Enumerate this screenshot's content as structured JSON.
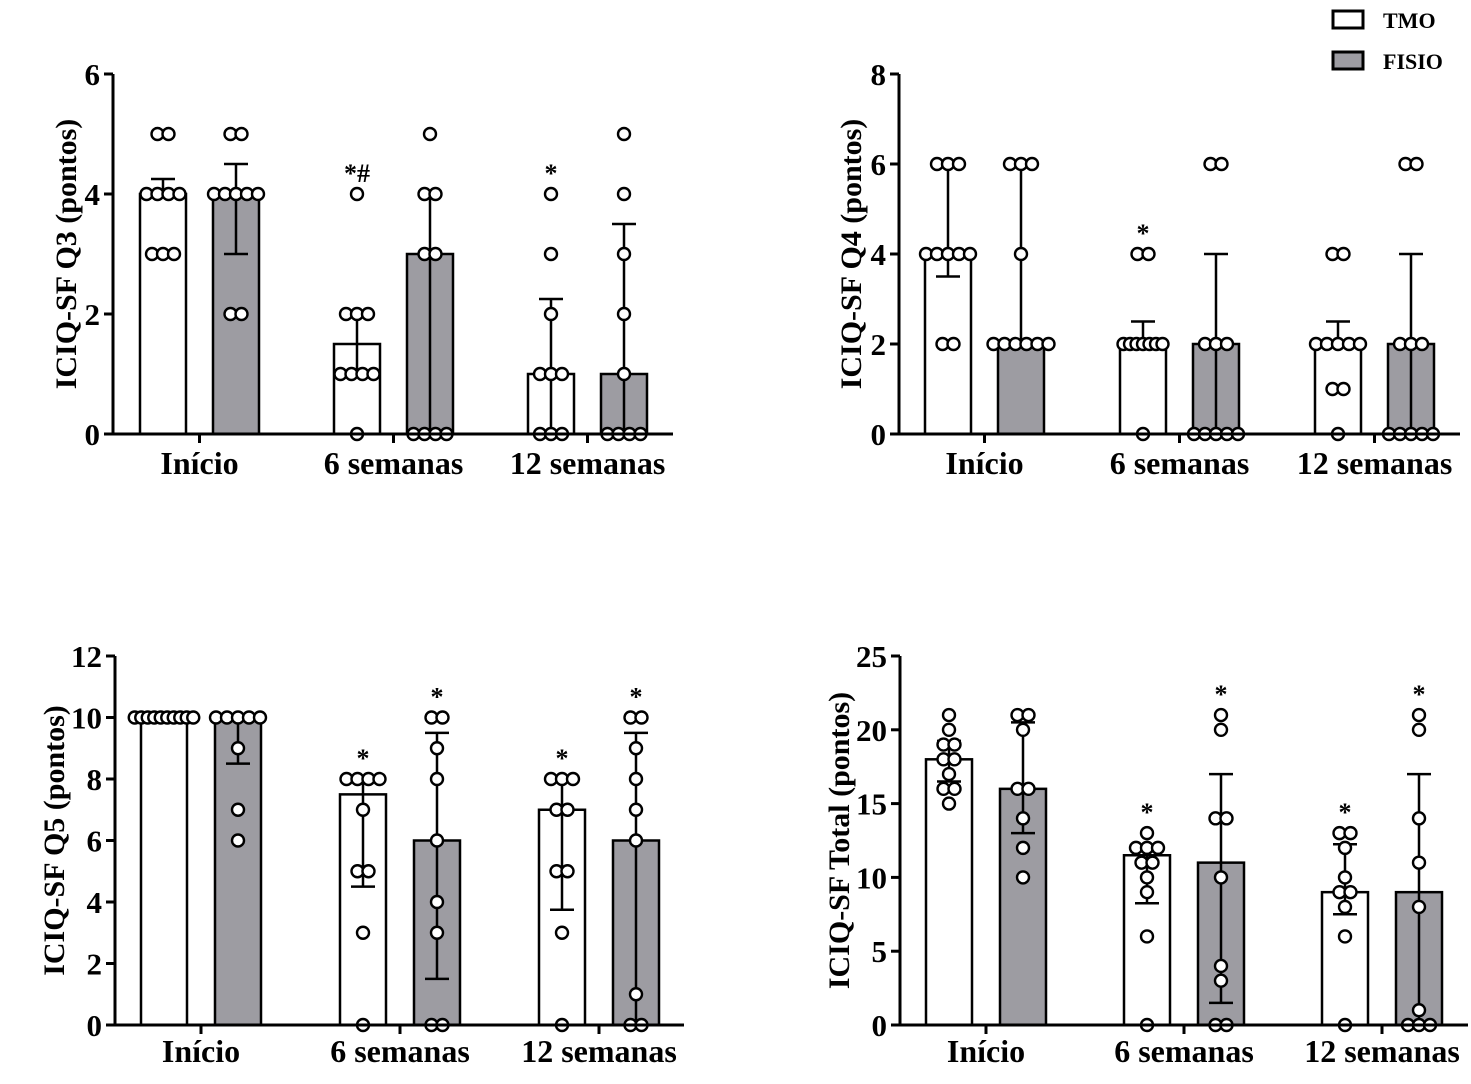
{
  "colors": {
    "tmo": "#ffffff",
    "fisio": "#9d9ca2",
    "stroke": "#000000"
  },
  "legend": {
    "items": [
      {
        "label": "TMO",
        "color": "#ffffff"
      },
      {
        "label": "FISIO",
        "color": "#9d9ca2"
      }
    ]
  },
  "chart_data": [
    {
      "type": "bar",
      "ylabel": "ICIQ-SF Q3 (pontos)",
      "ylim": [
        0,
        6
      ],
      "yticks": [
        0,
        2,
        4,
        6
      ],
      "categories": [
        "Início",
        "6 semanas",
        "12 semanas"
      ],
      "series": [
        {
          "name": "TMO",
          "values": [
            4,
            1.5,
            1
          ],
          "error_lo": [
            4,
            1,
            0
          ],
          "error_hi": [
            4.25,
            2,
            2.25
          ],
          "points": [
            [
              5,
              5,
              4,
              4,
              4,
              4,
              3,
              3,
              3
            ],
            [
              4,
              2,
              2,
              2,
              1,
              1,
              1,
              1,
              0
            ],
            [
              4,
              3,
              2,
              1,
              1,
              1,
              0,
              0,
              0
            ]
          ]
        },
        {
          "name": "FISIO",
          "values": [
            4,
            3,
            1
          ],
          "error_lo": [
            3,
            0,
            0
          ],
          "error_hi": [
            4.5,
            4,
            3.5
          ],
          "points": [
            [
              5,
              5,
              4,
              4,
              4,
              4,
              4,
              2,
              2
            ],
            [
              5,
              4,
              4,
              3,
              3,
              0,
              0,
              0,
              0
            ],
            [
              5,
              4,
              3,
              2,
              1,
              0,
              0,
              0,
              0
            ]
          ]
        }
      ],
      "annotations": [
        {
          "series": 0,
          "category": 1,
          "text": "*#"
        },
        {
          "series": 0,
          "category": 2,
          "text": "*"
        }
      ]
    },
    {
      "type": "bar",
      "ylabel": "ICIQ-SF Q4 (pontos)",
      "ylim": [
        0,
        8
      ],
      "yticks": [
        0,
        2,
        4,
        6,
        8
      ],
      "categories": [
        "Início",
        "6 semanas",
        "12 semanas"
      ],
      "series": [
        {
          "name": "TMO",
          "values": [
            4,
            2,
            2
          ],
          "error_lo": [
            3.5,
            2,
            2
          ],
          "error_hi": [
            6,
            2.5,
            2.5
          ],
          "points": [
            [
              6,
              6,
              6,
              4,
              4,
              4,
              4,
              4,
              2,
              2
            ],
            [
              4,
              4,
              2,
              2,
              2,
              2,
              2,
              2,
              2,
              0
            ],
            [
              4,
              4,
              2,
              2,
              2,
              2,
              2,
              1,
              1,
              0
            ]
          ]
        },
        {
          "name": "FISIO",
          "values": [
            2,
            2,
            2
          ],
          "error_lo": [
            2,
            0,
            0
          ],
          "error_hi": [
            6,
            4,
            4
          ],
          "points": [
            [
              6,
              6,
              6,
              4,
              2,
              2,
              2,
              2,
              2,
              2
            ],
            [
              6,
              6,
              2,
              2,
              2,
              0,
              0,
              0,
              0,
              0
            ],
            [
              6,
              6,
              2,
              2,
              2,
              0,
              0,
              0,
              0,
              0
            ]
          ]
        }
      ],
      "annotations": [
        {
          "series": 0,
          "category": 1,
          "text": "*"
        }
      ]
    },
    {
      "type": "bar",
      "ylabel": "ICIQ-SF Q5 (pontos)",
      "ylim": [
        0,
        12
      ],
      "yticks": [
        0,
        2,
        4,
        6,
        8,
        10,
        12
      ],
      "categories": [
        "Início",
        "6 semanas",
        "12 semanas"
      ],
      "series": [
        {
          "name": "TMO",
          "values": [
            10,
            7.5,
            7
          ],
          "error_lo": [
            10,
            4.5,
            3.75
          ],
          "error_hi": [
            10,
            8,
            8
          ],
          "points": [
            [
              10,
              10,
              10,
              10,
              10,
              10,
              10,
              10,
              10,
              10
            ],
            [
              8,
              8,
              8,
              8,
              7,
              5,
              5,
              3,
              0
            ],
            [
              8,
              8,
              8,
              7,
              7,
              5,
              5,
              3,
              0
            ]
          ]
        },
        {
          "name": "FISIO",
          "values": [
            10,
            6,
            6
          ],
          "error_lo": [
            8.5,
            1.5,
            0
          ],
          "error_hi": [
            10,
            9.5,
            9.5
          ],
          "points": [
            [
              10,
              10,
              10,
              10,
              10,
              9,
              7,
              6
            ],
            [
              10,
              10,
              9,
              8,
              6,
              4,
              3,
              0,
              0
            ],
            [
              10,
              10,
              9,
              8,
              7,
              6,
              1,
              0,
              0
            ]
          ]
        }
      ],
      "annotations": [
        {
          "series": 0,
          "category": 1,
          "text": "*"
        },
        {
          "series": 1,
          "category": 1,
          "text": "*"
        },
        {
          "series": 0,
          "category": 2,
          "text": "*"
        },
        {
          "series": 1,
          "category": 2,
          "text": "*"
        }
      ]
    },
    {
      "type": "bar",
      "ylabel": "ICIQ-SF Total (pontos)",
      "ylim": [
        0,
        25
      ],
      "yticks": [
        0,
        5,
        10,
        15,
        20,
        25
      ],
      "categories": [
        "Início",
        "6 semanas",
        "12 semanas"
      ],
      "series": [
        {
          "name": "TMO",
          "values": [
            18,
            11.5,
            9
          ],
          "error_lo": [
            16.5,
            8.25,
            7.5
          ],
          "error_hi": [
            19.25,
            12,
            12.25
          ],
          "points": [
            [
              21,
              20,
              19,
              19,
              18,
              18,
              17,
              16,
              16,
              15
            ],
            [
              13,
              12,
              12,
              12,
              11,
              11,
              10,
              9,
              6,
              0
            ],
            [
              13,
              13,
              12,
              10,
              9,
              9,
              8,
              6,
              0
            ]
          ]
        },
        {
          "name": "FISIO",
          "values": [
            16,
            11,
            9
          ],
          "error_lo": [
            13,
            1.5,
            0
          ],
          "error_hi": [
            20.5,
            17,
            17
          ],
          "points": [
            [
              21,
              21,
              20,
              16,
              16,
              14,
              12,
              10
            ],
            [
              21,
              20,
              14,
              14,
              10,
              4,
              3,
              0,
              0
            ],
            [
              21,
              20,
              14,
              11,
              8,
              1,
              0,
              0,
              0
            ]
          ]
        }
      ],
      "annotations": [
        {
          "series": 0,
          "category": 1,
          "text": "*"
        },
        {
          "series": 1,
          "category": 1,
          "text": "*"
        },
        {
          "series": 0,
          "category": 2,
          "text": "*"
        },
        {
          "series": 1,
          "category": 2,
          "text": "*"
        }
      ]
    }
  ]
}
